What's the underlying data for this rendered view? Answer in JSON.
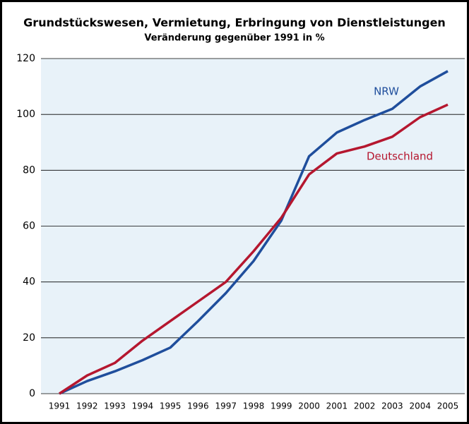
{
  "chart_data": {
    "type": "line",
    "title": "Grundstückswesen, Vermietung, Erbringung von Dienstleistungen",
    "subtitle": "Veränderung gegenüber 1991 in %",
    "categories": [
      "1991",
      "1992",
      "1993",
      "1994",
      "1995",
      "1996",
      "1997",
      "1998",
      "1999",
      "2000",
      "2001",
      "2002",
      "2003",
      "2004",
      "2005"
    ],
    "series": [
      {
        "name": "NRW",
        "color": "#1f4e9c",
        "values": [
          0,
          4.5,
          8,
          12,
          16.5,
          26,
          36,
          47.5,
          62,
          85,
          93.5,
          98,
          102,
          110,
          115.5
        ]
      },
      {
        "name": "Deutschland",
        "color": "#b5172f",
        "values": [
          0,
          6.5,
          11,
          19,
          26,
          33,
          40,
          51,
          63,
          78.5,
          86,
          88.5,
          92,
          99,
          103.5
        ]
      }
    ],
    "ylim": [
      0,
      120
    ],
    "yticks": [
      0,
      20,
      40,
      60,
      80,
      100,
      120
    ],
    "grid": true
  }
}
